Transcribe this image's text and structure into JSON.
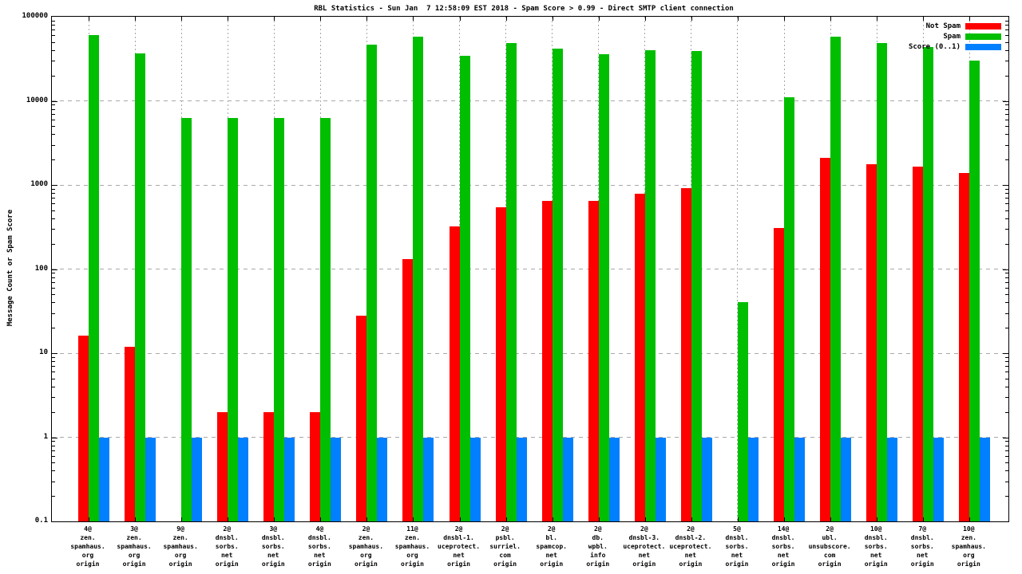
{
  "window": {
    "kind": "gnuplot-statistics-chart"
  },
  "chart_data": {
    "type": "bar",
    "scale_y": "log10",
    "title": "RBL Statistics - Sun Jan  7 12:58:09 EST 2018 - Spam Score > 0.99 - Direct SMTP client connection",
    "xlabel": "",
    "ylabel": "Message Count or Spam Score",
    "ylim": [
      0.1,
      100000
    ],
    "ytick_labels": [
      "100000",
      "10000",
      "1000",
      "100",
      "10",
      "1",
      "0.1"
    ],
    "grid": true,
    "legend_position": "top-right",
    "categories": [
      [
        "4@",
        "zen.",
        "spamhaus.",
        "org",
        "origin"
      ],
      [
        "3@",
        "zen.",
        "spamhaus.",
        "org",
        "origin"
      ],
      [
        "9@",
        "zen.",
        "spamhaus.",
        "org",
        "origin"
      ],
      [
        "2@",
        "dnsbl.",
        "sorbs.",
        "net",
        "origin"
      ],
      [
        "3@",
        "dnsbl.",
        "sorbs.",
        "net",
        "origin"
      ],
      [
        "4@",
        "dnsbl.",
        "sorbs.",
        "net",
        "origin"
      ],
      [
        "2@",
        "zen.",
        "spamhaus.",
        "org",
        "origin"
      ],
      [
        "11@",
        "zen.",
        "spamhaus.",
        "org",
        "origin"
      ],
      [
        "2@",
        "dnsbl-1.",
        "uceprotect.",
        "net",
        "origin"
      ],
      [
        "2@",
        "psbl.",
        "surriel.",
        "com",
        "origin"
      ],
      [
        "2@",
        "bl.",
        "spamcop.",
        "net",
        "origin"
      ],
      [
        "2@",
        "db.",
        "wpbl.",
        "info",
        "origin"
      ],
      [
        "2@",
        "dnsbl-3.",
        "uceprotect.",
        "net",
        "origin"
      ],
      [
        "2@",
        "dnsbl-2.",
        "uceprotect.",
        "net",
        "origin"
      ],
      [
        "5@",
        "dnsbl.",
        "sorbs.",
        "net",
        "origin"
      ],
      [
        "14@",
        "dnsbl.",
        "sorbs.",
        "net",
        "origin"
      ],
      [
        "2@",
        "ubl.",
        "unsubscore.",
        "com",
        "origin"
      ],
      [
        "10@",
        "dnsbl.",
        "sorbs.",
        "net",
        "origin"
      ],
      [
        "7@",
        "dnsbl.",
        "sorbs.",
        "net",
        "origin"
      ],
      [
        "10@",
        "zen.",
        "spamhaus.",
        "org",
        "origin"
      ]
    ],
    "series": [
      {
        "name": "Not Spam",
        "color": "#ff0000",
        "values": [
          16,
          12,
          0,
          2,
          2,
          2,
          28,
          130,
          320,
          540,
          650,
          640,
          790,
          910,
          0,
          310,
          2100,
          1750,
          1650,
          1400
        ]
      },
      {
        "name": "Spam",
        "color": "#00be00",
        "values": [
          60000,
          37000,
          6300,
          6300,
          6300,
          6300,
          47000,
          58000,
          34000,
          49000,
          42000,
          36000,
          40000,
          39000,
          40,
          11000,
          58000,
          49000,
          44000,
          30000
        ]
      },
      {
        "name": "Score (0..1)",
        "color": "#0080ff",
        "values": [
          1,
          1,
          1,
          1,
          1,
          1,
          1,
          1,
          1,
          1,
          1,
          1,
          1,
          1,
          1,
          1,
          1,
          1,
          1,
          1
        ]
      }
    ],
    "colors": {
      "axis": "#000000",
      "grid": "#a8a8a8",
      "background": "#ffffff"
    }
  }
}
